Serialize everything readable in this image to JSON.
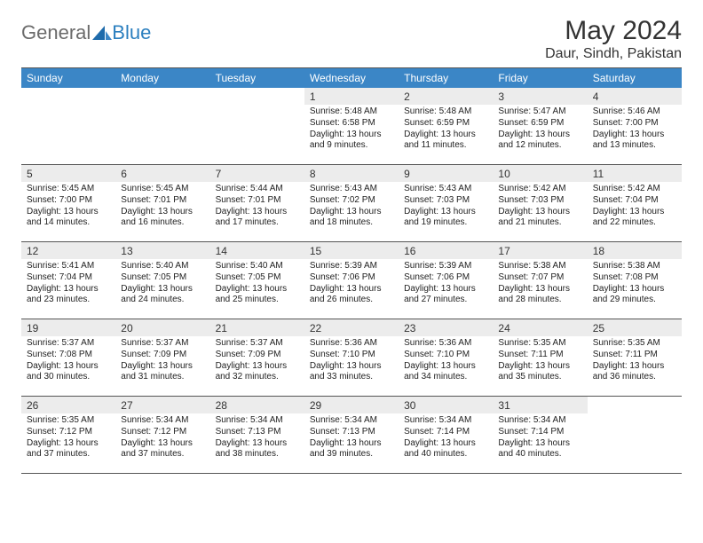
{
  "logo": {
    "general": "General",
    "blue": "Blue"
  },
  "title": "May 2024",
  "subtitle": "Daur, Sindh, Pakistan",
  "dayNames": [
    "Sunday",
    "Monday",
    "Tuesday",
    "Wednesday",
    "Thursday",
    "Friday",
    "Saturday"
  ],
  "colors": {
    "headerBar": "#3b86c6",
    "dayNumBg": "#ececec",
    "ruleLine": "#555555",
    "logoBlue": "#2b7fbf",
    "logoGray": "#6b6b6b"
  },
  "weeks": [
    [
      {
        "empty": true
      },
      {
        "empty": true
      },
      {
        "empty": true
      },
      {
        "day": "1",
        "sunrise": "Sunrise: 5:48 AM",
        "sunset": "Sunset: 6:58 PM",
        "dl1": "Daylight: 13 hours",
        "dl2": "and 9 minutes."
      },
      {
        "day": "2",
        "sunrise": "Sunrise: 5:48 AM",
        "sunset": "Sunset: 6:59 PM",
        "dl1": "Daylight: 13 hours",
        "dl2": "and 11 minutes."
      },
      {
        "day": "3",
        "sunrise": "Sunrise: 5:47 AM",
        "sunset": "Sunset: 6:59 PM",
        "dl1": "Daylight: 13 hours",
        "dl2": "and 12 minutes."
      },
      {
        "day": "4",
        "sunrise": "Sunrise: 5:46 AM",
        "sunset": "Sunset: 7:00 PM",
        "dl1": "Daylight: 13 hours",
        "dl2": "and 13 minutes."
      }
    ],
    [
      {
        "day": "5",
        "sunrise": "Sunrise: 5:45 AM",
        "sunset": "Sunset: 7:00 PM",
        "dl1": "Daylight: 13 hours",
        "dl2": "and 14 minutes."
      },
      {
        "day": "6",
        "sunrise": "Sunrise: 5:45 AM",
        "sunset": "Sunset: 7:01 PM",
        "dl1": "Daylight: 13 hours",
        "dl2": "and 16 minutes."
      },
      {
        "day": "7",
        "sunrise": "Sunrise: 5:44 AM",
        "sunset": "Sunset: 7:01 PM",
        "dl1": "Daylight: 13 hours",
        "dl2": "and 17 minutes."
      },
      {
        "day": "8",
        "sunrise": "Sunrise: 5:43 AM",
        "sunset": "Sunset: 7:02 PM",
        "dl1": "Daylight: 13 hours",
        "dl2": "and 18 minutes."
      },
      {
        "day": "9",
        "sunrise": "Sunrise: 5:43 AM",
        "sunset": "Sunset: 7:03 PM",
        "dl1": "Daylight: 13 hours",
        "dl2": "and 19 minutes."
      },
      {
        "day": "10",
        "sunrise": "Sunrise: 5:42 AM",
        "sunset": "Sunset: 7:03 PM",
        "dl1": "Daylight: 13 hours",
        "dl2": "and 21 minutes."
      },
      {
        "day": "11",
        "sunrise": "Sunrise: 5:42 AM",
        "sunset": "Sunset: 7:04 PM",
        "dl1": "Daylight: 13 hours",
        "dl2": "and 22 minutes."
      }
    ],
    [
      {
        "day": "12",
        "sunrise": "Sunrise: 5:41 AM",
        "sunset": "Sunset: 7:04 PM",
        "dl1": "Daylight: 13 hours",
        "dl2": "and 23 minutes."
      },
      {
        "day": "13",
        "sunrise": "Sunrise: 5:40 AM",
        "sunset": "Sunset: 7:05 PM",
        "dl1": "Daylight: 13 hours",
        "dl2": "and 24 minutes."
      },
      {
        "day": "14",
        "sunrise": "Sunrise: 5:40 AM",
        "sunset": "Sunset: 7:05 PM",
        "dl1": "Daylight: 13 hours",
        "dl2": "and 25 minutes."
      },
      {
        "day": "15",
        "sunrise": "Sunrise: 5:39 AM",
        "sunset": "Sunset: 7:06 PM",
        "dl1": "Daylight: 13 hours",
        "dl2": "and 26 minutes."
      },
      {
        "day": "16",
        "sunrise": "Sunrise: 5:39 AM",
        "sunset": "Sunset: 7:06 PM",
        "dl1": "Daylight: 13 hours",
        "dl2": "and 27 minutes."
      },
      {
        "day": "17",
        "sunrise": "Sunrise: 5:38 AM",
        "sunset": "Sunset: 7:07 PM",
        "dl1": "Daylight: 13 hours",
        "dl2": "and 28 minutes."
      },
      {
        "day": "18",
        "sunrise": "Sunrise: 5:38 AM",
        "sunset": "Sunset: 7:08 PM",
        "dl1": "Daylight: 13 hours",
        "dl2": "and 29 minutes."
      }
    ],
    [
      {
        "day": "19",
        "sunrise": "Sunrise: 5:37 AM",
        "sunset": "Sunset: 7:08 PM",
        "dl1": "Daylight: 13 hours",
        "dl2": "and 30 minutes."
      },
      {
        "day": "20",
        "sunrise": "Sunrise: 5:37 AM",
        "sunset": "Sunset: 7:09 PM",
        "dl1": "Daylight: 13 hours",
        "dl2": "and 31 minutes."
      },
      {
        "day": "21",
        "sunrise": "Sunrise: 5:37 AM",
        "sunset": "Sunset: 7:09 PM",
        "dl1": "Daylight: 13 hours",
        "dl2": "and 32 minutes."
      },
      {
        "day": "22",
        "sunrise": "Sunrise: 5:36 AM",
        "sunset": "Sunset: 7:10 PM",
        "dl1": "Daylight: 13 hours",
        "dl2": "and 33 minutes."
      },
      {
        "day": "23",
        "sunrise": "Sunrise: 5:36 AM",
        "sunset": "Sunset: 7:10 PM",
        "dl1": "Daylight: 13 hours",
        "dl2": "and 34 minutes."
      },
      {
        "day": "24",
        "sunrise": "Sunrise: 5:35 AM",
        "sunset": "Sunset: 7:11 PM",
        "dl1": "Daylight: 13 hours",
        "dl2": "and 35 minutes."
      },
      {
        "day": "25",
        "sunrise": "Sunrise: 5:35 AM",
        "sunset": "Sunset: 7:11 PM",
        "dl1": "Daylight: 13 hours",
        "dl2": "and 36 minutes."
      }
    ],
    [
      {
        "day": "26",
        "sunrise": "Sunrise: 5:35 AM",
        "sunset": "Sunset: 7:12 PM",
        "dl1": "Daylight: 13 hours",
        "dl2": "and 37 minutes."
      },
      {
        "day": "27",
        "sunrise": "Sunrise: 5:34 AM",
        "sunset": "Sunset: 7:12 PM",
        "dl1": "Daylight: 13 hours",
        "dl2": "and 37 minutes."
      },
      {
        "day": "28",
        "sunrise": "Sunrise: 5:34 AM",
        "sunset": "Sunset: 7:13 PM",
        "dl1": "Daylight: 13 hours",
        "dl2": "and 38 minutes."
      },
      {
        "day": "29",
        "sunrise": "Sunrise: 5:34 AM",
        "sunset": "Sunset: 7:13 PM",
        "dl1": "Daylight: 13 hours",
        "dl2": "and 39 minutes."
      },
      {
        "day": "30",
        "sunrise": "Sunrise: 5:34 AM",
        "sunset": "Sunset: 7:14 PM",
        "dl1": "Daylight: 13 hours",
        "dl2": "and 40 minutes."
      },
      {
        "day": "31",
        "sunrise": "Sunrise: 5:34 AM",
        "sunset": "Sunset: 7:14 PM",
        "dl1": "Daylight: 13 hours",
        "dl2": "and 40 minutes."
      },
      {
        "empty": true
      }
    ]
  ]
}
